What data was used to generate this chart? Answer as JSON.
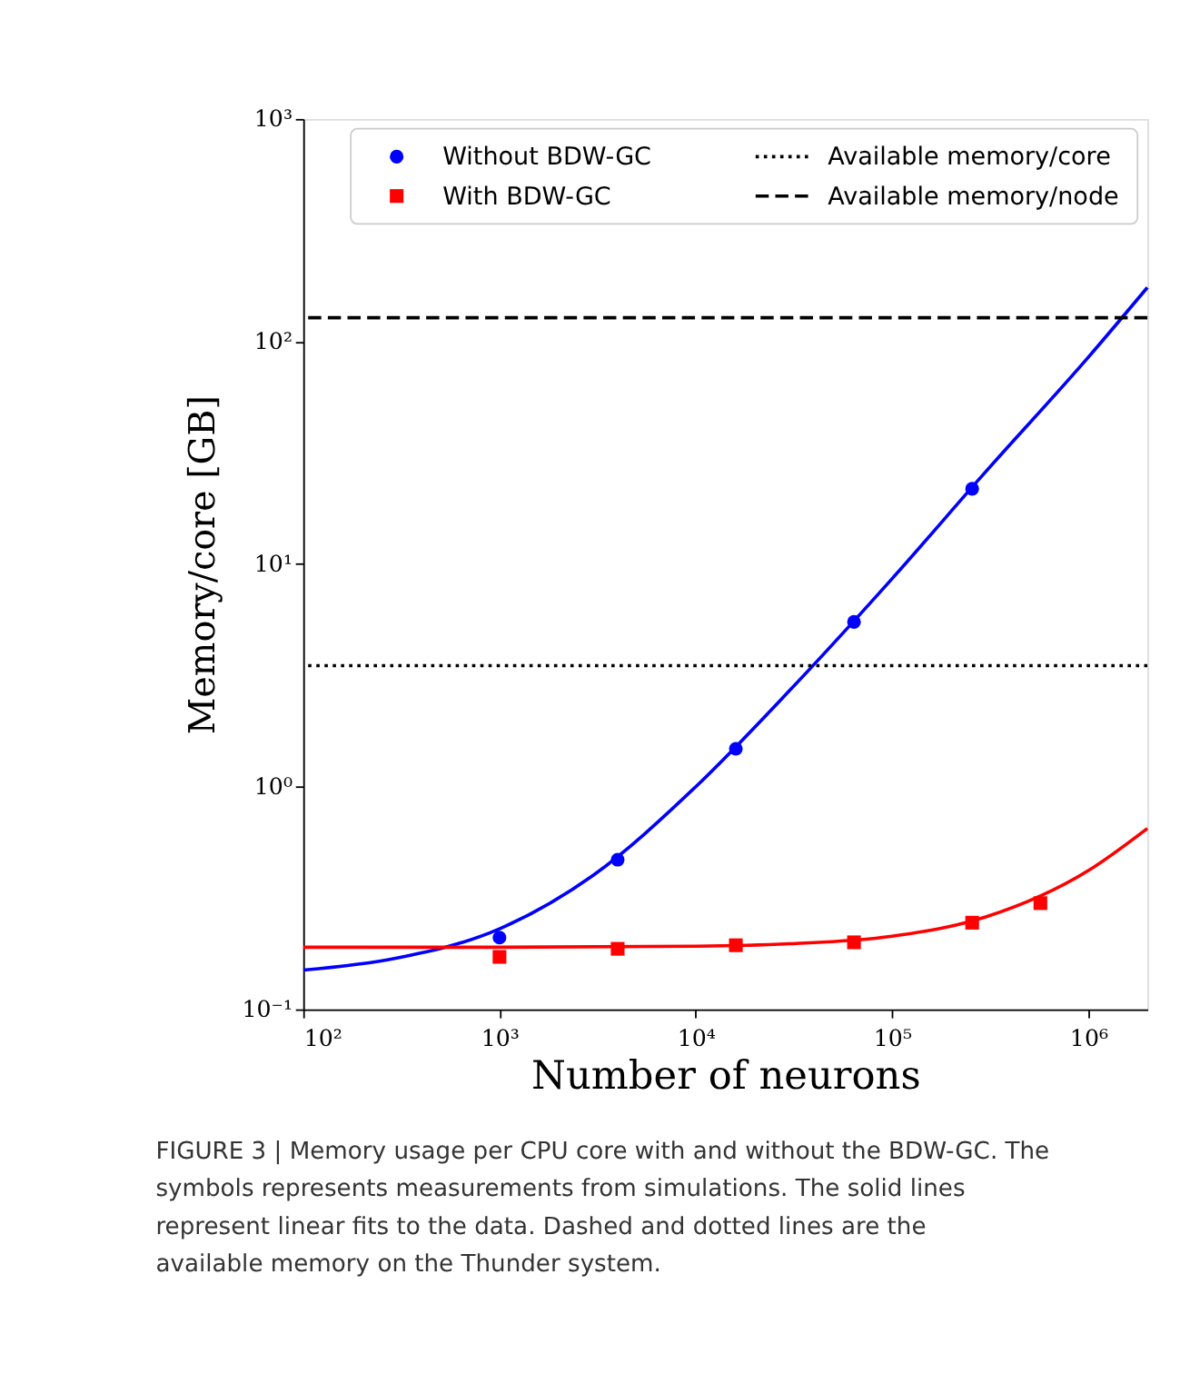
{
  "chart_data": {
    "type": "line",
    "xlabel": "Number of neurons",
    "ylabel": "Memory/core [GB]",
    "log": "xy",
    "grid": false,
    "legend": "top right",
    "xlim": [
      100,
      2000000
    ],
    "ylim": [
      0.1,
      1000
    ],
    "xticks": [
      {
        "value": 100,
        "label": "10²"
      },
      {
        "value": 1000,
        "label": "10³"
      },
      {
        "value": 10000,
        "label": "10⁴"
      },
      {
        "value": 100000,
        "label": "10⁵"
      },
      {
        "value": 1000000,
        "label": "10⁶"
      }
    ],
    "yticks": [
      {
        "value": 0.1,
        "label": "10⁻¹"
      },
      {
        "value": 1,
        "label": "10⁰"
      },
      {
        "value": 10,
        "label": "10¹"
      },
      {
        "value": 100,
        "label": "10²"
      },
      {
        "value": 1000,
        "label": "10³"
      }
    ],
    "series": [
      {
        "name": "Without BDW-GC",
        "type": "scatter",
        "marker": "circle",
        "color": "#0000ff",
        "x": [
          1000,
          4000,
          16000,
          64000,
          256000
        ],
        "values": [
          0.21,
          0.47,
          1.48,
          5.5,
          21.8
        ]
      },
      {
        "name": "With BDW-GC",
        "type": "scatter",
        "marker": "square",
        "color": "#ff0000",
        "x": [
          1000,
          4000,
          16000,
          64000,
          256000,
          570000
        ],
        "values": [
          0.172,
          0.187,
          0.194,
          0.2,
          0.245,
          0.3
        ]
      },
      {
        "color": "#0000ff",
        "x": [
          100,
          300,
          1000,
          3000,
          10000,
          30000,
          100000,
          300000,
          1000000,
          2000000
        ],
        "values": [
          0.15,
          0.17,
          0.23,
          0.4,
          1.0,
          2.7,
          8.6,
          26,
          85,
          175
        ]
      },
      {
        "color": "#ff0000",
        "x": [
          100,
          1000,
          10000,
          30000,
          100000,
          300000,
          1000000,
          2000000
        ],
        "values": [
          0.19,
          0.19,
          0.192,
          0.197,
          0.213,
          0.26,
          0.42,
          0.65
        ]
      }
    ],
    "ref_lines": [
      {
        "axis": "y",
        "value": 3.5,
        "label": "Available memory/core",
        "line_style": "dotted",
        "color": "#000000"
      },
      {
        "axis": "y",
        "value": 128,
        "label": "Available memory/node",
        "line_style": "dashed",
        "color": "#000000"
      }
    ],
    "annotations": [
      "FIGURE 3 | Memory usage per CPU core with and without the BDW-GC. The symbols represents measurements from simulations. The solid lines represent linear fits to the data. Dashed and dotted lines are the available memory on the Thunder system."
    ]
  }
}
